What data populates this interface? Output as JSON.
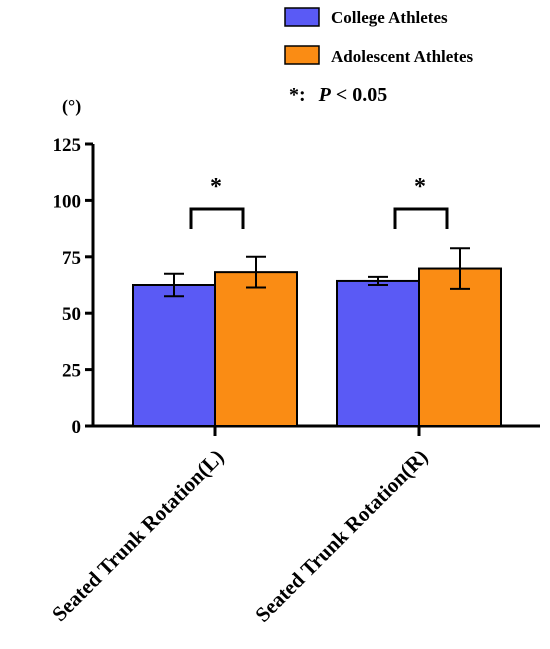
{
  "chart_data": {
    "type": "bar",
    "categories": [
      "Seated Trunk Rotation(L)",
      "Seated Trunk Rotation(R)"
    ],
    "series": [
      {
        "name": "College Athletes",
        "color": "#5A5AF5",
        "values": [
          62.5,
          64.3
        ],
        "error": [
          5.0,
          1.8
        ]
      },
      {
        "name": "Adolescent Athletes",
        "color": "#FA8C14",
        "values": [
          68.2,
          69.8
        ],
        "error": [
          6.8,
          9.0
        ]
      }
    ],
    "ylabel": "(°)",
    "ylim": [
      0,
      125
    ],
    "yticks": [
      0,
      25,
      50,
      75,
      100,
      125
    ],
    "significance": [
      {
        "category_index": 0,
        "symbol": "*"
      },
      {
        "category_index": 1,
        "symbol": "*"
      }
    ],
    "legend_note": {
      "symbol": "*:",
      "p": "P",
      "rest": " < 0.05"
    },
    "legend_position": "top-right",
    "grid": false
  }
}
